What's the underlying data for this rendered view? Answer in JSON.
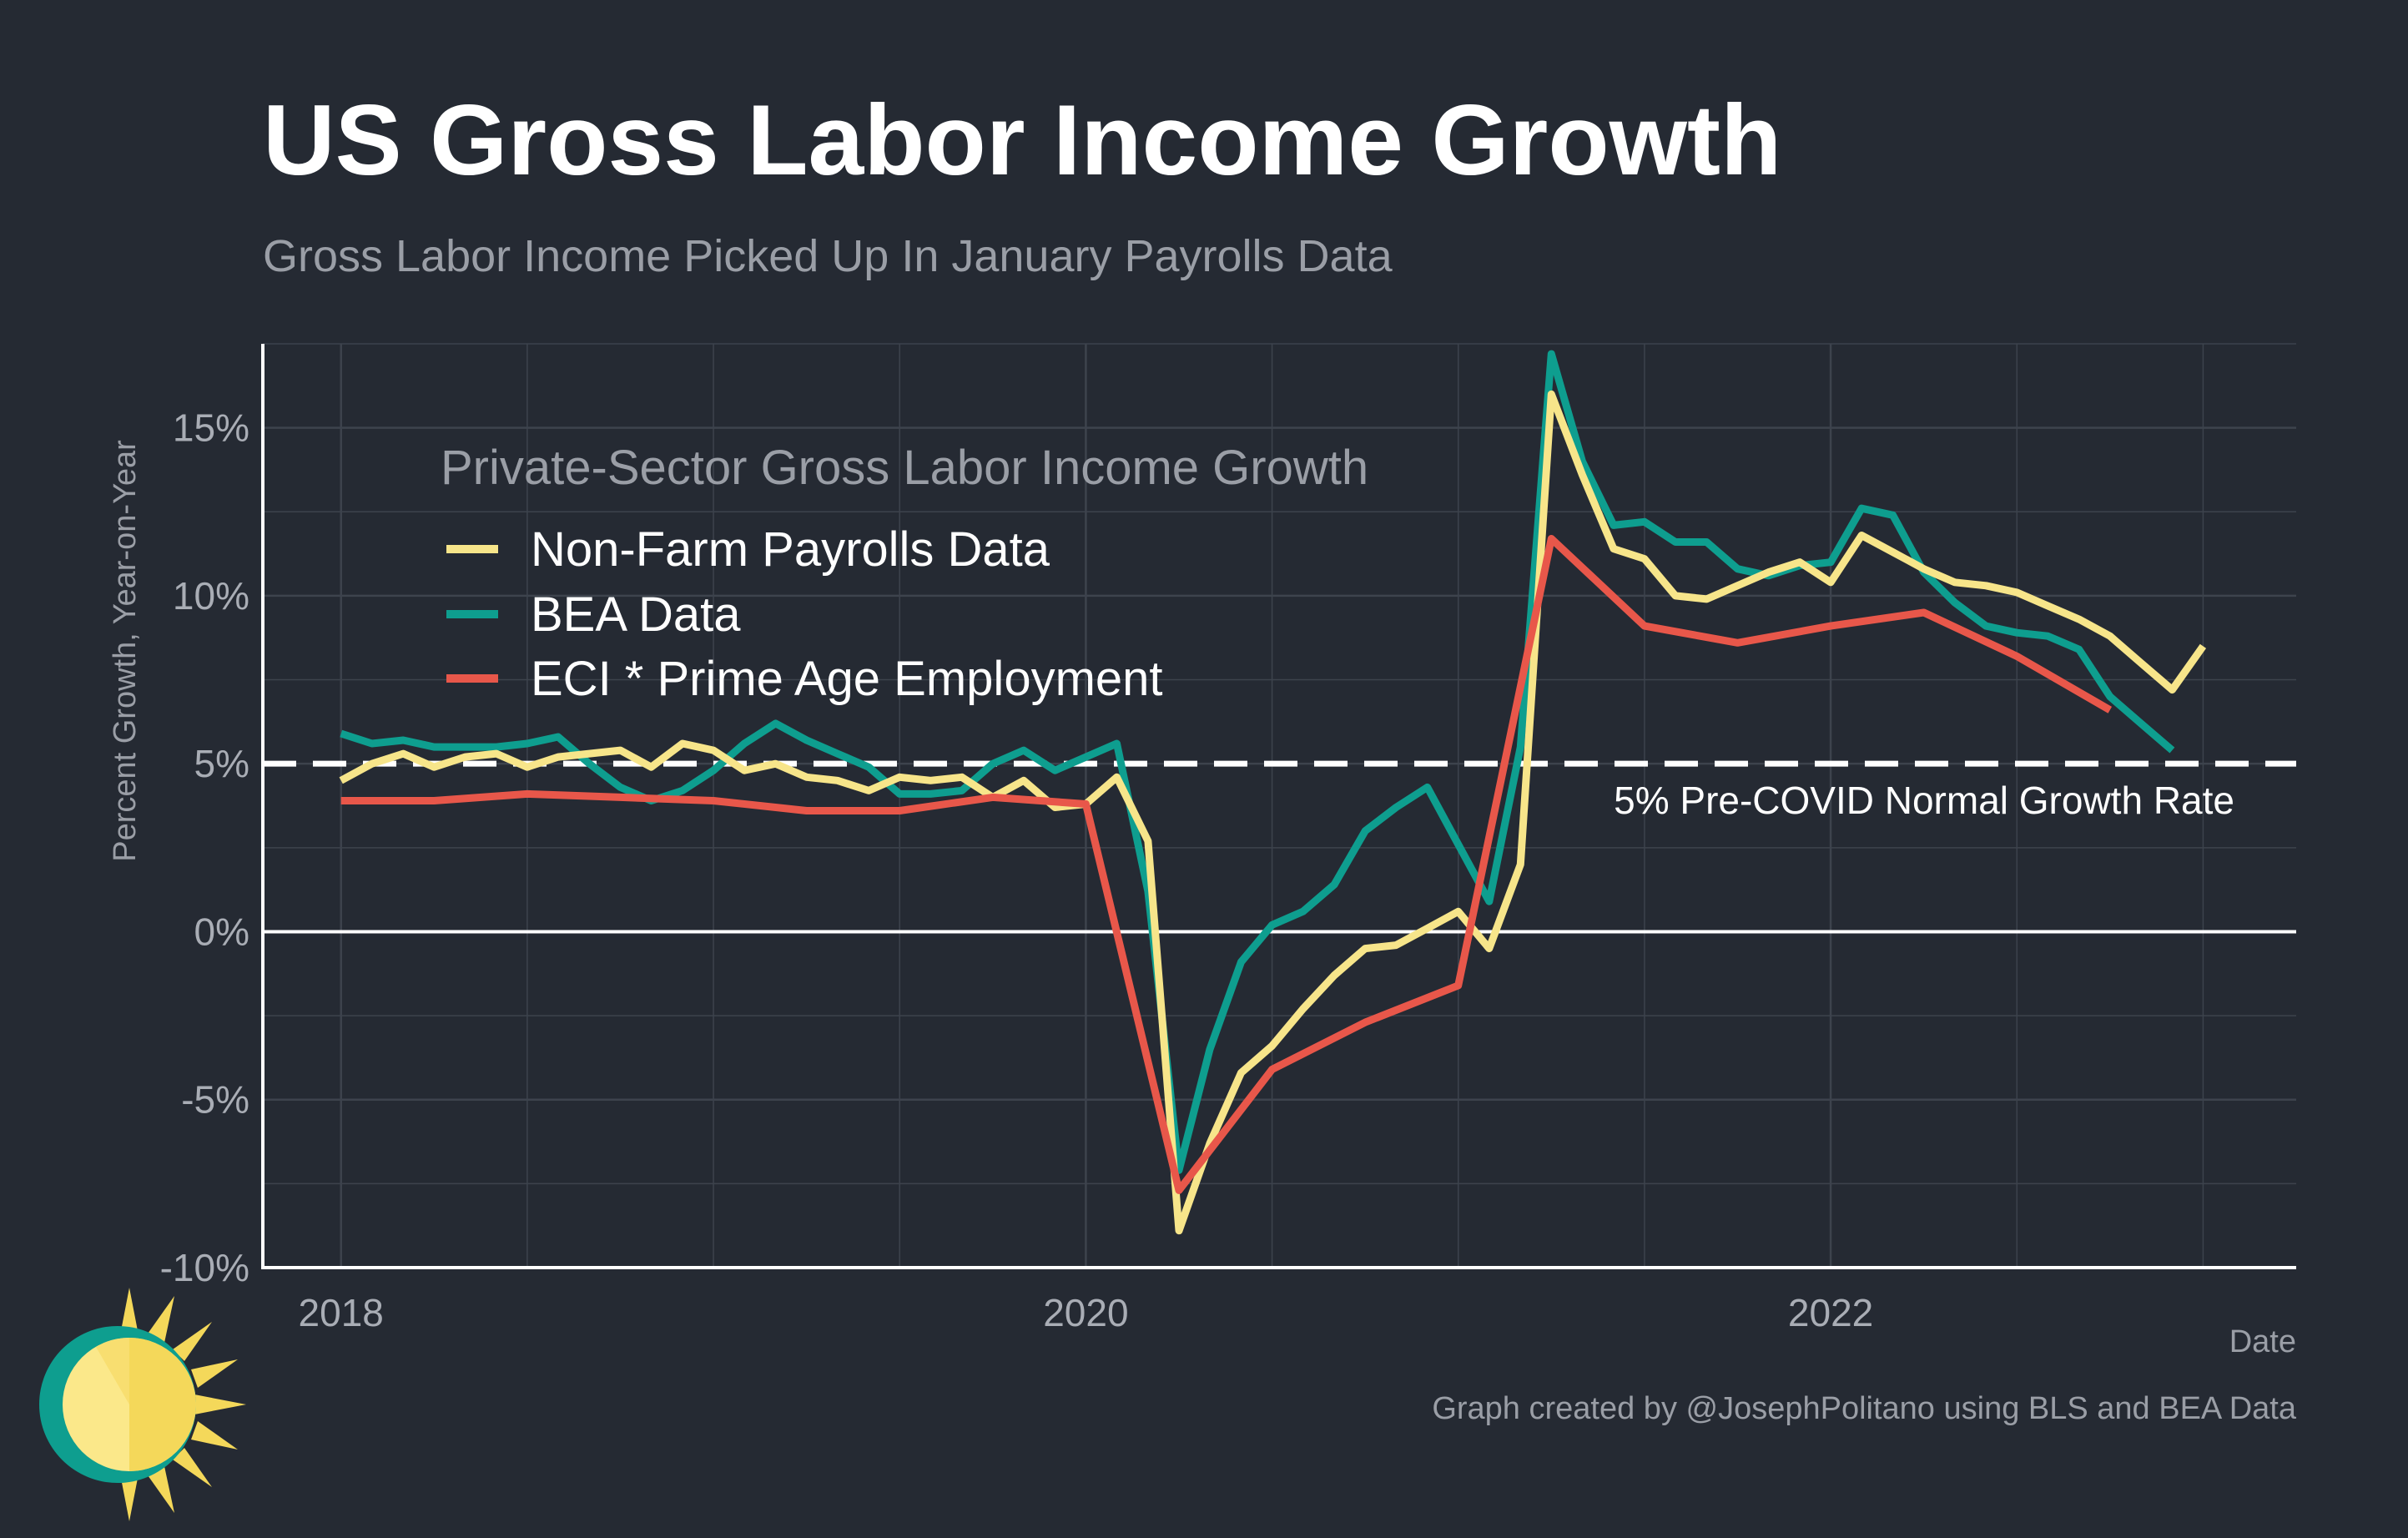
{
  "title": "US Gross Labor Income Growth",
  "subtitle": "Gross Labor Income Picked Up In January Payrolls Data",
  "caption": "Graph created by @JosephPolitano using BLS and BEA Data",
  "colors": {
    "background": "#252a33",
    "grid": "#3d434d",
    "axis": "#ffffff",
    "nfp": "#f7e58a",
    "bea": "#0e9e8f",
    "eci": "#e8574a"
  },
  "icons": {
    "logo": "sun-icon"
  },
  "chart_data": {
    "type": "line",
    "xlabel": "Date",
    "ylabel": "Percent Growth, Year-on-Year",
    "xlim": [
      2017.79,
      2023.25
    ],
    "ylim": [
      -10,
      17.5
    ],
    "x_ticks": [
      2018,
      2020,
      2022
    ],
    "x_tick_labels": [
      "2018",
      "2020",
      "2022"
    ],
    "y_ticks": [
      15,
      10,
      5,
      0,
      -5,
      -10
    ],
    "y_tick_labels": [
      "15%",
      "10%",
      "5%",
      "0%",
      "-5%",
      "-10%"
    ],
    "grid": true,
    "legend": {
      "title": "Private-Sector Gross Labor Income Growth",
      "position": "top-left",
      "entries": [
        "Non-Farm Payrolls Data",
        "BEA Data",
        "ECI * Prime Age Employment"
      ]
    },
    "reference_lines": [
      {
        "y": 5,
        "style": "dashed",
        "label": "5% Pre-COVID Normal Growth Rate"
      },
      {
        "y": 0,
        "style": "solid",
        "label": ""
      }
    ],
    "series": [
      {
        "name": "Non-Farm Payrolls Data",
        "color": "#f7e58a",
        "x": [
          2018.0,
          2018.083,
          2018.167,
          2018.25,
          2018.333,
          2018.417,
          2018.5,
          2018.583,
          2018.667,
          2018.75,
          2018.833,
          2018.917,
          2019.0,
          2019.083,
          2019.167,
          2019.25,
          2019.333,
          2019.417,
          2019.5,
          2019.583,
          2019.667,
          2019.75,
          2019.833,
          2019.917,
          2020.0,
          2020.083,
          2020.167,
          2020.25,
          2020.333,
          2020.417,
          2020.5,
          2020.583,
          2020.667,
          2020.75,
          2020.833,
          2020.917,
          2021.0,
          2021.083,
          2021.167,
          2021.25,
          2021.333,
          2021.417,
          2021.5,
          2021.583,
          2021.667,
          2021.75,
          2021.833,
          2021.917,
          2022.0,
          2022.083,
          2022.167,
          2022.25,
          2022.333,
          2022.417,
          2022.5,
          2022.583,
          2022.667,
          2022.75,
          2022.833,
          2022.917,
          2023.0
        ],
        "values": [
          4.5,
          5.0,
          5.3,
          4.9,
          5.2,
          5.3,
          4.9,
          5.2,
          5.3,
          5.4,
          4.9,
          5.6,
          5.4,
          4.8,
          5.0,
          4.6,
          4.5,
          4.2,
          4.6,
          4.5,
          4.6,
          4.0,
          4.5,
          3.7,
          3.8,
          4.6,
          2.7,
          -8.9,
          -6.3,
          -4.2,
          -3.4,
          -2.3,
          -1.3,
          -0.5,
          -0.4,
          0.1,
          0.6,
          -0.5,
          2.0,
          16.0,
          13.6,
          11.4,
          11.1,
          10.0,
          9.9,
          10.3,
          10.7,
          11.0,
          10.4,
          11.8,
          11.3,
          10.8,
          10.4,
          10.3,
          10.1,
          9.7,
          9.3,
          8.8,
          8.0,
          7.2,
          8.5
        ]
      },
      {
        "name": "BEA Data",
        "color": "#0e9e8f",
        "x": [
          2018.0,
          2018.083,
          2018.167,
          2018.25,
          2018.333,
          2018.417,
          2018.5,
          2018.583,
          2018.667,
          2018.75,
          2018.833,
          2018.917,
          2019.0,
          2019.083,
          2019.167,
          2019.25,
          2019.333,
          2019.417,
          2019.5,
          2019.583,
          2019.667,
          2019.75,
          2019.833,
          2019.917,
          2020.0,
          2020.083,
          2020.167,
          2020.25,
          2020.333,
          2020.417,
          2020.5,
          2020.583,
          2020.667,
          2020.75,
          2020.833,
          2020.917,
          2021.0,
          2021.083,
          2021.167,
          2021.25,
          2021.333,
          2021.417,
          2021.5,
          2021.583,
          2021.667,
          2021.75,
          2021.833,
          2021.917,
          2022.0,
          2022.083,
          2022.167,
          2022.25,
          2022.333,
          2022.417,
          2022.5,
          2022.583,
          2022.667,
          2022.75,
          2022.833,
          2022.917
        ],
        "values": [
          5.9,
          5.6,
          5.7,
          5.5,
          5.5,
          5.5,
          5.6,
          5.8,
          5.0,
          4.3,
          3.9,
          4.2,
          4.8,
          5.6,
          6.2,
          5.7,
          5.3,
          4.9,
          4.1,
          4.1,
          4.2,
          5.0,
          5.4,
          4.8,
          5.2,
          5.6,
          1.2,
          -7.1,
          -3.5,
          -0.9,
          0.2,
          0.6,
          1.4,
          3.0,
          3.7,
          4.3,
          2.6,
          0.9,
          5.5,
          17.2,
          14.0,
          12.1,
          12.2,
          11.6,
          11.6,
          10.8,
          10.6,
          10.9,
          11.0,
          12.6,
          12.4,
          10.7,
          9.8,
          9.1,
          8.9,
          8.8,
          8.4,
          7.0,
          6.2,
          5.4
        ]
      },
      {
        "name": "ECI * Prime Age Employment",
        "color": "#e8574a",
        "x": [
          2018.0,
          2018.25,
          2018.5,
          2018.75,
          2019.0,
          2019.25,
          2019.5,
          2019.75,
          2020.0,
          2020.25,
          2020.5,
          2020.75,
          2021.0,
          2021.25,
          2021.5,
          2021.75,
          2022.0,
          2022.25,
          2022.5,
          2022.75
        ],
        "values": [
          3.9,
          3.9,
          4.1,
          4.0,
          3.9,
          3.6,
          3.6,
          4.0,
          3.8,
          -7.7,
          -4.1,
          -2.7,
          -1.6,
          11.7,
          9.1,
          8.6,
          9.1,
          9.5,
          8.2,
          6.6
        ]
      }
    ]
  }
}
